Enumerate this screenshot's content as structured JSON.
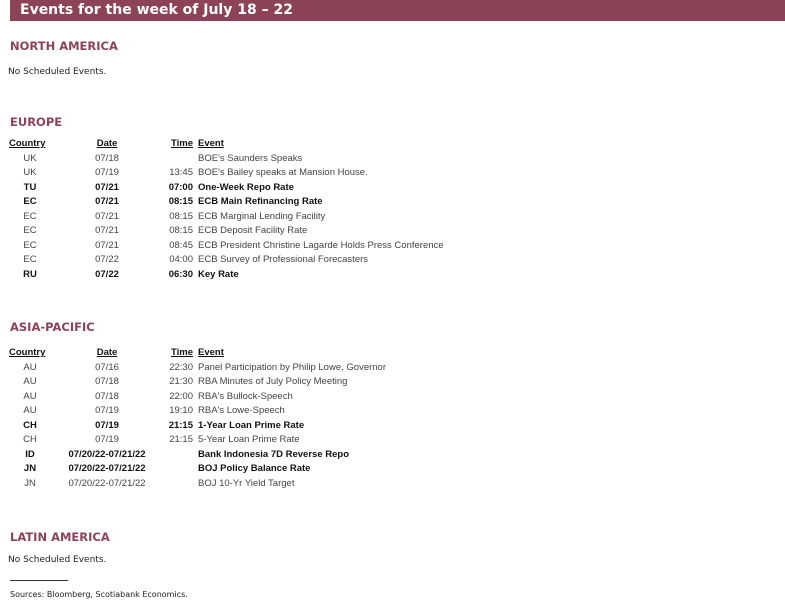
{
  "title": "Events for the week of July 18 – 22",
  "columns": {
    "country": "Country",
    "date": "Date",
    "time": "Time",
    "event": "Event"
  },
  "north_america": {
    "heading": "NORTH AMERICA",
    "note": "No Scheduled Events."
  },
  "europe": {
    "heading": "EUROPE",
    "rows": [
      {
        "country": "UK",
        "date": "07/18",
        "time": "",
        "event": "BOE's Saunders Speaks",
        "bold": false
      },
      {
        "country": "UK",
        "date": "07/19",
        "time": "13:45",
        "event": "BOE's Bailey speaks at Mansion House.",
        "bold": false
      },
      {
        "country": "TU",
        "date": "07/21",
        "time": "07:00",
        "event": "One-Week Repo Rate",
        "bold": true
      },
      {
        "country": "EC",
        "date": "07/21",
        "time": "08:15",
        "event": "ECB Main Refinancing Rate",
        "bold": true
      },
      {
        "country": "EC",
        "date": "07/21",
        "time": "08:15",
        "event": "ECB Marginal Lending Facility",
        "bold": false
      },
      {
        "country": "EC",
        "date": "07/21",
        "time": "08:15",
        "event": "ECB Deposit Facility Rate",
        "bold": false
      },
      {
        "country": "EC",
        "date": "07/21",
        "time": "08:45",
        "event": "ECB President Christine Lagarde Holds Press Conference",
        "bold": false
      },
      {
        "country": "EC",
        "date": "07/22",
        "time": "04:00",
        "event": "ECB Survey of Professional Forecasters",
        "bold": false
      },
      {
        "country": "RU",
        "date": "07/22",
        "time": "06:30",
        "event": "Key Rate",
        "bold": true
      }
    ]
  },
  "asia_pacific": {
    "heading": "ASIA-PACIFIC",
    "rows": [
      {
        "country": "AU",
        "date": "07/16",
        "time": "22:30",
        "event": "Panel Participation by Philip Lowe, Governor",
        "bold": false
      },
      {
        "country": "AU",
        "date": "07/18",
        "time": "21:30",
        "event": "RBA Minutes of July Policy Meeting",
        "bold": false
      },
      {
        "country": "AU",
        "date": "07/18",
        "time": "22:00",
        "event": "RBA's Bullock-Speech",
        "bold": false
      },
      {
        "country": "AU",
        "date": "07/19",
        "time": "19:10",
        "event": "RBA's Lowe-Speech",
        "bold": false
      },
      {
        "country": "CH",
        "date": "07/19",
        "time": "21:15",
        "event": "1-Year Loan Prime Rate",
        "bold": true
      },
      {
        "country": "CH",
        "date": "07/19",
        "time": "21:15",
        "event": "5-Year Loan Prime Rate",
        "bold": false
      },
      {
        "country": "ID",
        "date": "07/20/22-07/21/22",
        "time": "",
        "event": "Bank Indonesia 7D Reverse Repo",
        "bold": true
      },
      {
        "country": "JN",
        "date": "07/20/22-07/21/22",
        "time": "",
        "event": "BOJ Policy Balance Rate",
        "bold": true
      },
      {
        "country": "JN",
        "date": "07/20/22-07/21/22",
        "time": "",
        "event": "BOJ 10-Yr Yield Target",
        "bold": false
      }
    ]
  },
  "latin_america": {
    "heading": "LATIN AMERICA",
    "note": "No Scheduled Events."
  },
  "sources": "Sources: Bloomberg, Scotiabank Economics."
}
